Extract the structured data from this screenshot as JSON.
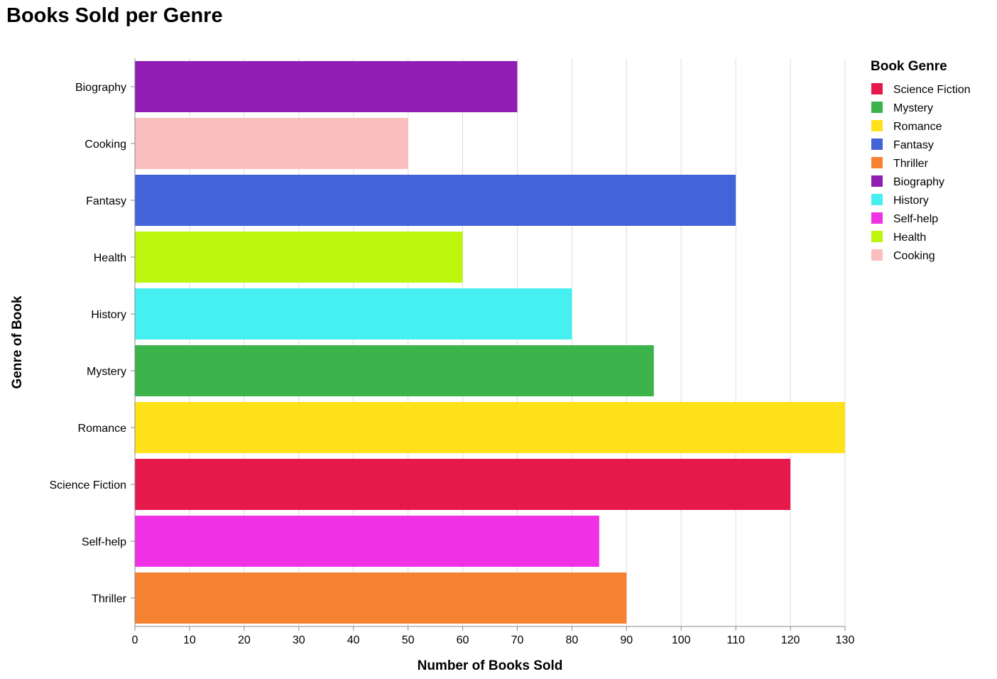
{
  "chart_data": {
    "type": "bar",
    "orientation": "horizontal",
    "title": "Books Sold per Genre",
    "xlabel": "Number of Books Sold",
    "ylabel": "Genre of Book",
    "xlim": [
      0,
      130
    ],
    "x_ticks": [
      0,
      10,
      20,
      30,
      40,
      50,
      60,
      70,
      80,
      90,
      100,
      110,
      120,
      130
    ],
    "grid": true,
    "categories": [
      "Biography",
      "Cooking",
      "Fantasy",
      "Health",
      "History",
      "Mystery",
      "Romance",
      "Science Fiction",
      "Self-help",
      "Thriller"
    ],
    "values": [
      70,
      50,
      110,
      60,
      80,
      95,
      130,
      120,
      85,
      90
    ],
    "colors": {
      "Science Fiction": "#e6194b",
      "Mystery": "#3cb44b",
      "Romance": "#ffe119",
      "Fantasy": "#4363d8",
      "Thriller": "#f58231",
      "Biography": "#911eb4",
      "History": "#46f0f0",
      "Self-help": "#f032e6",
      "Health": "#bcf60c",
      "Cooking": "#fabebe"
    },
    "legend": {
      "title": "Book Genre",
      "position": "right",
      "entries": [
        "Science Fiction",
        "Mystery",
        "Romance",
        "Fantasy",
        "Thriller",
        "Biography",
        "History",
        "Self-help",
        "Health",
        "Cooking"
      ]
    }
  }
}
